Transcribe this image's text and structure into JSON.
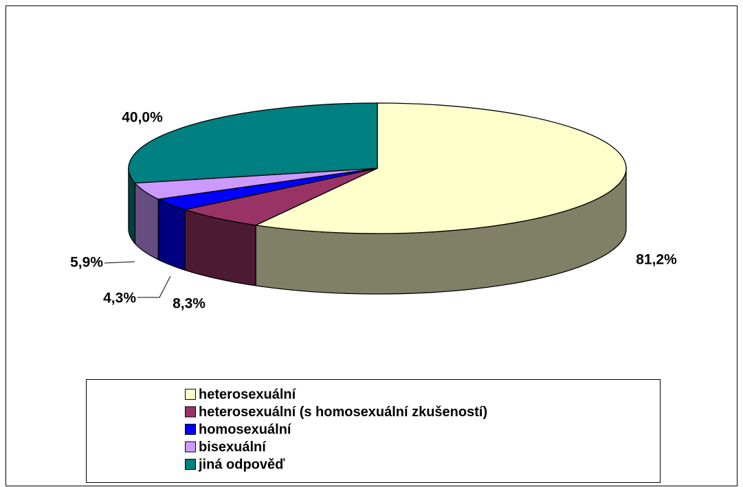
{
  "chart_data": {
    "type": "pie3d",
    "categories": [
      "heterosexuální",
      "heterosexuální (s homosexuální zkušeností)",
      "homosexuální",
      "bisexuální",
      "jiná odpověď"
    ],
    "values": [
      81.2,
      8.3,
      4.3,
      5.9,
      40.0
    ],
    "value_labels": [
      "81,2%",
      "8,3%",
      "4,3%",
      "5,9%",
      "40,0%"
    ],
    "colors": [
      "#FFFFCC",
      "#993366",
      "#0000FF",
      "#CC99FF",
      "#008080"
    ],
    "legend": "bottom"
  }
}
